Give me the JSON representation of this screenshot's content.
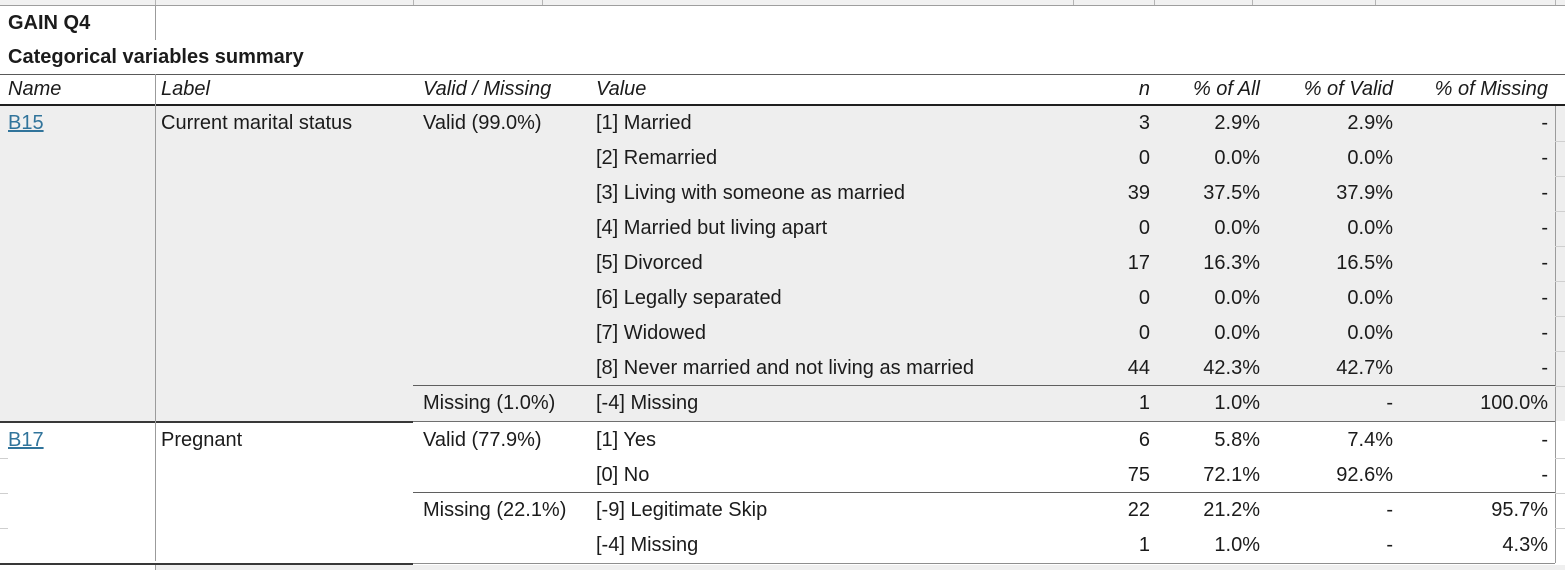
{
  "title": "GAIN Q4",
  "subtitle": "Categorical variables summary",
  "columns": [
    "Name",
    "Label",
    "Valid / Missing",
    "Value",
    "n",
    "% of All",
    "% of Valid",
    "% of Missing"
  ],
  "colors": {
    "link": "#31749b",
    "shaded_group_fill": "#eeeeee",
    "header_rule": "#1f1f1f",
    "gridline": "#9b9b9b"
  },
  "groups": [
    {
      "name": "B15",
      "label": "Current marital status",
      "shaded": true,
      "rows": [
        {
          "vm": "Valid (99.0%)",
          "value": "[1] Married",
          "n": "3",
          "pct_all": "2.9%",
          "pct_valid": "2.9%",
          "pct_missing": "-"
        },
        {
          "vm": "",
          "value": "[2] Remarried",
          "n": "0",
          "pct_all": "0.0%",
          "pct_valid": "0.0%",
          "pct_missing": "-"
        },
        {
          "vm": "",
          "value": "[3] Living with someone as married",
          "n": "39",
          "pct_all": "37.5%",
          "pct_valid": "37.9%",
          "pct_missing": "-"
        },
        {
          "vm": "",
          "value": "[4] Married but living apart",
          "n": "0",
          "pct_all": "0.0%",
          "pct_valid": "0.0%",
          "pct_missing": "-"
        },
        {
          "vm": "",
          "value": "[5] Divorced",
          "n": "17",
          "pct_all": "16.3%",
          "pct_valid": "16.5%",
          "pct_missing": "-"
        },
        {
          "vm": "",
          "value": "[6] Legally separated",
          "n": "0",
          "pct_all": "0.0%",
          "pct_valid": "0.0%",
          "pct_missing": "-"
        },
        {
          "vm": "",
          "value": "[7] Widowed",
          "n": "0",
          "pct_all": "0.0%",
          "pct_valid": "0.0%",
          "pct_missing": "-"
        },
        {
          "vm": "",
          "value": "[8] Never married and not living as married",
          "n": "44",
          "pct_all": "42.3%",
          "pct_valid": "42.7%",
          "pct_missing": "-"
        },
        {
          "vm": "Missing (1.0%)",
          "value": "[-4] Missing",
          "n": "1",
          "pct_all": "1.0%",
          "pct_valid": "-",
          "pct_missing": "100.0%",
          "sep_above": true
        }
      ]
    },
    {
      "name": "B17",
      "label": "Pregnant",
      "shaded": false,
      "rows": [
        {
          "vm": "Valid (77.9%)",
          "value": "[1] Yes",
          "n": "6",
          "pct_all": "5.8%",
          "pct_valid": "7.4%",
          "pct_missing": "-"
        },
        {
          "vm": "",
          "value": "[0] No",
          "n": "75",
          "pct_all": "72.1%",
          "pct_valid": "92.6%",
          "pct_missing": "-"
        },
        {
          "vm": "Missing (22.1%)",
          "value": "[-9] Legitimate Skip",
          "n": "22",
          "pct_all": "21.2%",
          "pct_valid": "-",
          "pct_missing": "95.7%",
          "sep_above": true
        },
        {
          "vm": "",
          "value": "[-4] Missing",
          "n": "1",
          "pct_all": "1.0%",
          "pct_valid": "-",
          "pct_missing": "4.3%"
        }
      ]
    }
  ]
}
